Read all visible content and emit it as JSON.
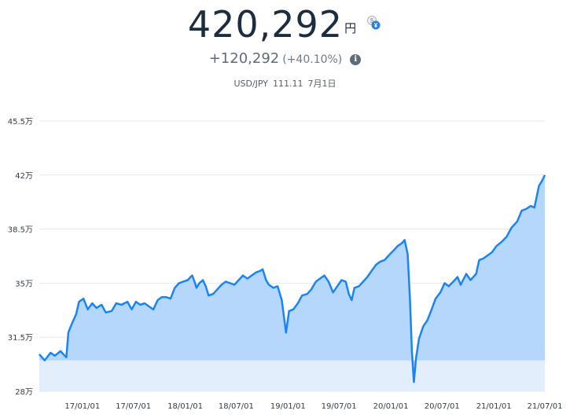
{
  "header": {
    "value": "420,292",
    "unit": "円",
    "change": "+120,292",
    "change_pct": "(+40.10%)",
    "pair": "USD/JPY",
    "rate": "111.11",
    "date": "7月1日",
    "fx_icon": "currency-exchange-icon",
    "info_icon": "info-icon"
  },
  "colors": {
    "line": "#1a84f5",
    "area": "#b5d7fb",
    "baseline_area": "#e2eefb",
    "grid": "#e6e9ec",
    "value_text": "#1b2d3e"
  },
  "chart_data": {
    "type": "area",
    "ylim": [
      280000,
      455000
    ],
    "yticks": [
      280000,
      315000,
      350000,
      385000,
      420000,
      455000
    ],
    "ytick_labels": [
      "28万",
      "31.5万",
      "35万",
      "38.5万",
      "42万",
      "45.5万"
    ],
    "xticks": [
      "2017-01-01",
      "2017-07-01",
      "2018-01-01",
      "2018-07-01",
      "2019-01-01",
      "2019-07-01",
      "2020-01-01",
      "2020-07-01",
      "2021-01-01",
      "2021-07-01"
    ],
    "xtick_labels": [
      "17/01/01",
      "17/07/01",
      "18/01/01",
      "18/07/01",
      "19/01/01",
      "19/07/01",
      "20/01/01",
      "20/07/01",
      "21/01/01",
      "21/07/01"
    ],
    "baseline": 300000,
    "grid": true,
    "series": [
      {
        "x": [
          "2016-08-01",
          "2016-08-20",
          "2016-09-10",
          "2016-09-25",
          "2016-10-15",
          "2016-11-05",
          "2016-11-12",
          "2016-11-25",
          "2016-12-10",
          "2016-12-20",
          "2017-01-05",
          "2017-01-20",
          "2017-02-05",
          "2017-02-20",
          "2017-03-10",
          "2017-03-25",
          "2017-04-15",
          "2017-05-01",
          "2017-05-20",
          "2017-06-10",
          "2017-06-25",
          "2017-07-10",
          "2017-07-25",
          "2017-08-10",
          "2017-08-25",
          "2017-09-10",
          "2017-09-25",
          "2017-10-10",
          "2017-10-25",
          "2017-11-10",
          "2017-11-25",
          "2017-12-10",
          "2017-12-25",
          "2018-01-10",
          "2018-01-20",
          "2018-01-26",
          "2018-02-05",
          "2018-02-10",
          "2018-02-20",
          "2018-03-05",
          "2018-03-15",
          "2018-03-25",
          "2018-04-10",
          "2018-04-25",
          "2018-05-10",
          "2018-05-25",
          "2018-06-10",
          "2018-06-25",
          "2018-07-10",
          "2018-07-25",
          "2018-08-10",
          "2018-08-25",
          "2018-09-10",
          "2018-09-25",
          "2018-10-03",
          "2018-10-15",
          "2018-10-25",
          "2018-11-10",
          "2018-11-25",
          "2018-12-10",
          "2018-12-20",
          "2018-12-25",
          "2019-01-05",
          "2019-01-20",
          "2019-02-05",
          "2019-02-20",
          "2019-03-10",
          "2019-03-25",
          "2019-04-10",
          "2019-04-25",
          "2019-05-10",
          "2019-05-25",
          "2019-06-10",
          "2019-06-25",
          "2019-07-10",
          "2019-07-25",
          "2019-08-05",
          "2019-08-15",
          "2019-08-25",
          "2019-09-10",
          "2019-09-25",
          "2019-10-10",
          "2019-10-25",
          "2019-11-10",
          "2019-11-25",
          "2019-12-10",
          "2019-12-25",
          "2020-01-10",
          "2020-01-25",
          "2020-02-10",
          "2020-02-19",
          "2020-03-01",
          "2020-03-09",
          "2020-03-16",
          "2020-03-23",
          "2020-03-31",
          "2020-04-10",
          "2020-04-25",
          "2020-05-10",
          "2020-05-25",
          "2020-06-08",
          "2020-06-25",
          "2020-07-10",
          "2020-07-25",
          "2020-08-10",
          "2020-08-25",
          "2020-09-05",
          "2020-09-25",
          "2020-10-10",
          "2020-10-30",
          "2020-11-10",
          "2020-11-25",
          "2020-12-10",
          "2020-12-25",
          "2021-01-10",
          "2021-01-30",
          "2021-02-15",
          "2021-03-05",
          "2021-03-25",
          "2021-04-10",
          "2021-04-25",
          "2021-05-12",
          "2021-05-25",
          "2021-06-10",
          "2021-06-20",
          "2021-07-01"
        ],
        "y": [
          304000,
          300000,
          305000,
          303000,
          306000,
          302000,
          318000,
          324000,
          330000,
          338000,
          340000,
          333000,
          337000,
          334000,
          336000,
          331000,
          332000,
          337000,
          336000,
          338000,
          333000,
          338000,
          336000,
          337000,
          335000,
          333000,
          339000,
          341000,
          341000,
          340000,
          347000,
          350000,
          351000,
          352000,
          354000,
          355000,
          350000,
          347000,
          350000,
          352000,
          348000,
          342000,
          343000,
          346000,
          349000,
          351000,
          350000,
          349000,
          352000,
          355000,
          353000,
          355000,
          357000,
          358000,
          359000,
          352000,
          349000,
          347000,
          348000,
          339000,
          325000,
          318000,
          332000,
          333000,
          337000,
          342000,
          343000,
          346000,
          351000,
          353000,
          355000,
          351000,
          344000,
          348000,
          352000,
          351000,
          343000,
          339000,
          347000,
          348000,
          351000,
          354000,
          358000,
          362000,
          364000,
          365000,
          368000,
          371000,
          374000,
          376000,
          378000,
          369000,
          340000,
          306000,
          286000,
          302000,
          314000,
          322000,
          326000,
          333000,
          340000,
          344000,
          350000,
          348000,
          351000,
          354000,
          349000,
          356000,
          352000,
          356000,
          365000,
          366000,
          368000,
          370000,
          374000,
          377000,
          380000,
          386000,
          390000,
          397000,
          398000,
          400000,
          399000,
          413000,
          416000,
          420000
        ]
      }
    ]
  }
}
